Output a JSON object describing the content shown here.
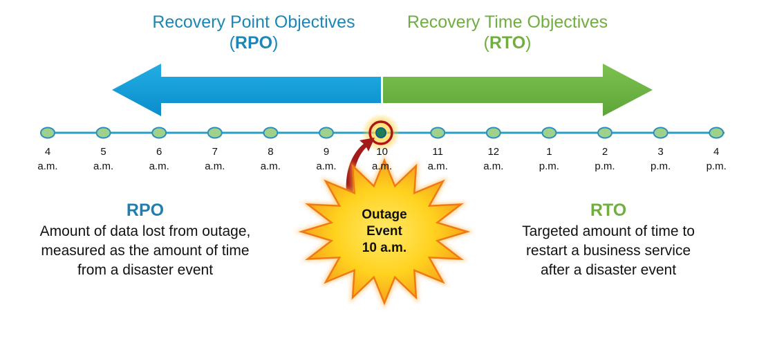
{
  "headings": {
    "rpo": {
      "line1": "Recovery Point Objectives",
      "open": "(",
      "abbr": "RPO",
      "close": ")"
    },
    "rto": {
      "line1": "Recovery Time Objectives",
      "open": "(",
      "abbr": "RTO",
      "close": ")"
    }
  },
  "timeline": {
    "ticks": [
      {
        "hour": "4",
        "period": "a.m."
      },
      {
        "hour": "5",
        "period": "a.m."
      },
      {
        "hour": "6",
        "period": "a.m."
      },
      {
        "hour": "7",
        "period": "a.m."
      },
      {
        "hour": "8",
        "period": "a.m."
      },
      {
        "hour": "9",
        "period": "a.m."
      },
      {
        "hour": "10",
        "period": "a.m."
      },
      {
        "hour": "11",
        "period": "a.m."
      },
      {
        "hour": "12",
        "period": "a.m."
      },
      {
        "hour": "1",
        "period": "p.m."
      },
      {
        "hour": "2",
        "period": "p.m."
      },
      {
        "hour": "3",
        "period": "p.m."
      },
      {
        "hour": "4",
        "period": "p.m."
      }
    ],
    "highlighted_tick": 6
  },
  "outage": {
    "line1": "Outage",
    "line2": "Event",
    "line3": "10 a.m."
  },
  "descriptions": {
    "rpo": {
      "title": "RPO",
      "lines": [
        "Amount of data lost from outage,",
        "measured as the amount of time",
        "from a disaster event"
      ]
    },
    "rto": {
      "title": "RTO",
      "lines": [
        "Targeted amount of time to",
        "restart a business service",
        "after a disaster event"
      ]
    }
  },
  "colors": {
    "rpo_blue": "#0a98d6",
    "rto_green": "#6cb043",
    "timeline_line": "#2a9ec8",
    "node_fill": "#9fd18a",
    "node_stroke": "#2a8ec0",
    "highlight_ring": "#b0141b",
    "burst_fill": "#ffd21e",
    "burst_stroke": "#f07a12",
    "pointer_arrow": "#a31a1a"
  }
}
